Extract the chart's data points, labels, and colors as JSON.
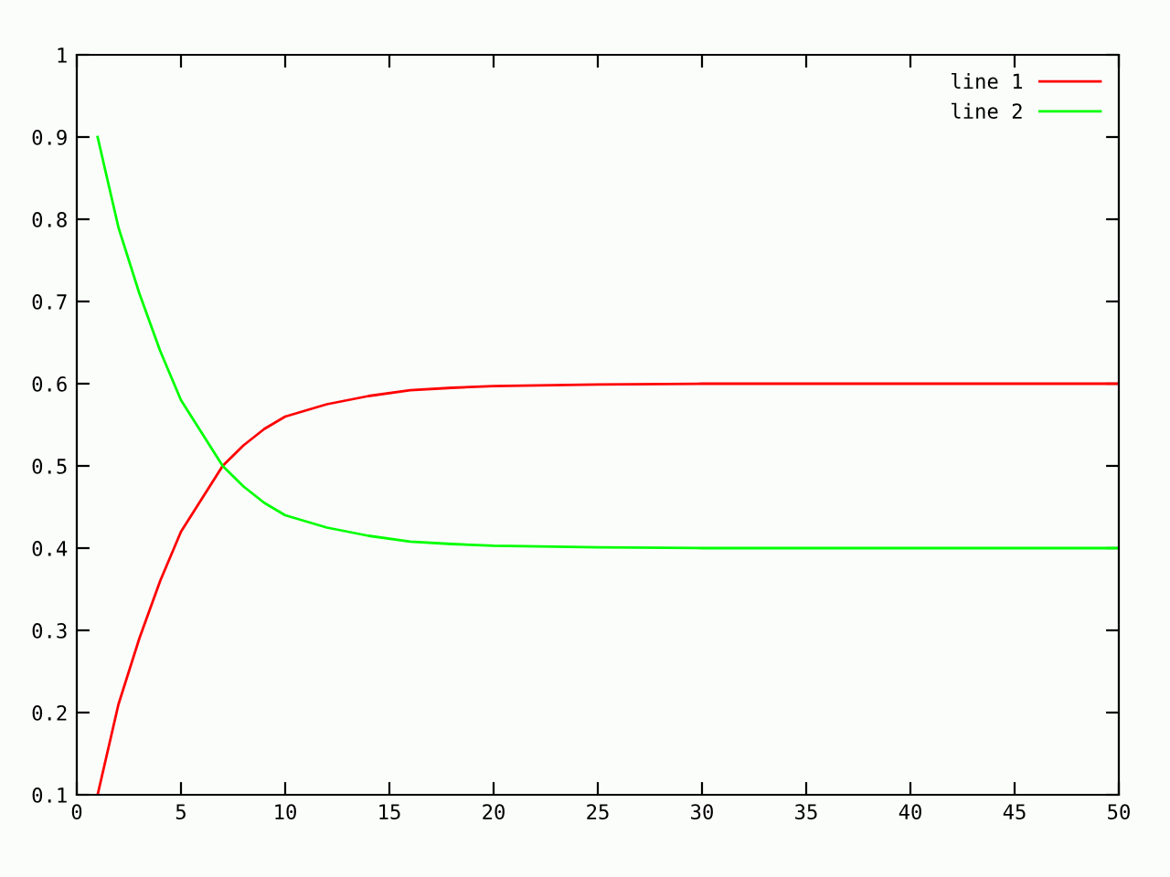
{
  "chart_data": {
    "type": "line",
    "x": [
      1,
      2,
      3,
      4,
      5,
      6,
      7,
      8,
      9,
      10,
      12,
      14,
      16,
      18,
      20,
      25,
      30,
      40,
      50
    ],
    "series": [
      {
        "name": "line 1",
        "color": "#ff0000",
        "values": [
          0.1,
          0.21,
          0.29,
          0.36,
          0.42,
          0.46,
          0.5,
          0.525,
          0.545,
          0.56,
          0.575,
          0.585,
          0.592,
          0.595,
          0.597,
          0.599,
          0.6,
          0.6,
          0.6
        ]
      },
      {
        "name": "line 2",
        "color": "#00ff00",
        "values": [
          0.9,
          0.79,
          0.71,
          0.64,
          0.58,
          0.54,
          0.5,
          0.475,
          0.455,
          0.44,
          0.425,
          0.415,
          0.408,
          0.405,
          0.403,
          0.401,
          0.4,
          0.4,
          0.4
        ]
      }
    ],
    "xlim": [
      0,
      50
    ],
    "ylim": [
      0.1,
      1
    ],
    "xticks": [
      0,
      5,
      10,
      15,
      20,
      25,
      30,
      35,
      40,
      45,
      50
    ],
    "yticks": [
      0.1,
      0.2,
      0.3,
      0.4,
      0.5,
      0.6,
      0.7,
      0.8,
      0.9,
      1
    ],
    "legend": "top right",
    "grid": false,
    "marker": "none",
    "line_style": "solid"
  }
}
